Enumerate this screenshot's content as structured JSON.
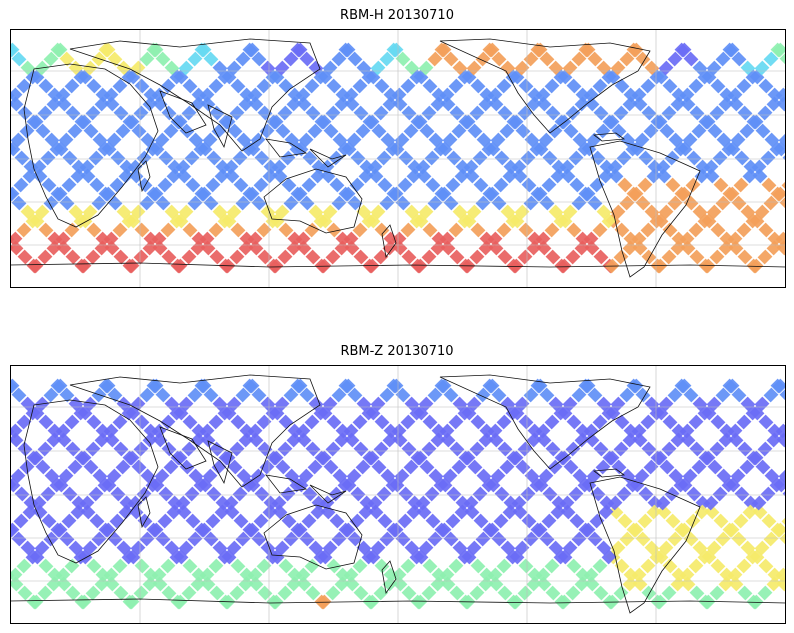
{
  "panels": [
    {
      "title": "RBM-H 20130710",
      "kind": "H"
    },
    {
      "title": "RBM-Z 20130710",
      "kind": "Z"
    }
  ],
  "colors": {
    "blue": "#6a6cf5",
    "mid_blue": "#5f8ff6",
    "cyan": "#66d9f2",
    "green": "#8ef0b0",
    "yellow": "#f5ea6a",
    "orange": "#f3a05a",
    "red": "#e8605e"
  }
}
